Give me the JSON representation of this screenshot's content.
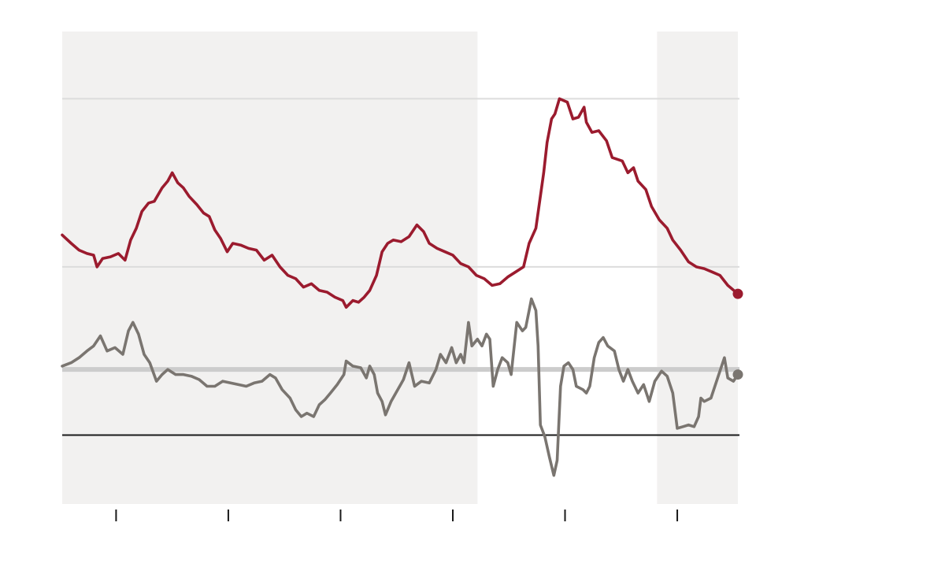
{
  "chart_data": {
    "type": "line",
    "title": "",
    "xlabel": "",
    "ylabel": "",
    "xlim": [
      -0.48,
      5.54
    ],
    "ylim": [
      -41,
      240
    ],
    "x_ticks": [
      0,
      1,
      2,
      3,
      4,
      5
    ],
    "y_gridlines": [
      100,
      200
    ],
    "zero_line": 0,
    "reference_line": 39,
    "grid": true,
    "shaded_regions": [
      [
        -0.48,
        3.22
      ],
      [
        4.82,
        5.54
      ]
    ],
    "colors": {
      "shade": "#f2f1f0",
      "grid": "#dcdcdc",
      "reference": "#cccccc",
      "zero": "#1a1a1a",
      "tick": "#1a1a1a"
    },
    "series": [
      {
        "color": "#9b1b2e",
        "end_marker": true,
        "points": [
          [
            -0.48,
            119
          ],
          [
            -0.4,
            114
          ],
          [
            -0.33,
            110
          ],
          [
            -0.26,
            108
          ],
          [
            -0.2,
            107
          ],
          [
            -0.17,
            100
          ],
          [
            -0.12,
            105
          ],
          [
            -0.05,
            106
          ],
          [
            0.02,
            108
          ],
          [
            0.08,
            104
          ],
          [
            0.13,
            116
          ],
          [
            0.18,
            123
          ],
          [
            0.23,
            133
          ],
          [
            0.29,
            138
          ],
          [
            0.34,
            139
          ],
          [
            0.41,
            147
          ],
          [
            0.46,
            151
          ],
          [
            0.5,
            156
          ],
          [
            0.55,
            150
          ],
          [
            0.6,
            147
          ],
          [
            0.65,
            142
          ],
          [
            0.72,
            137
          ],
          [
            0.78,
            132
          ],
          [
            0.83,
            130
          ],
          [
            0.88,
            122
          ],
          [
            0.93,
            117
          ],
          [
            0.99,
            109
          ],
          [
            1.04,
            114
          ],
          [
            1.11,
            113
          ],
          [
            1.18,
            111
          ],
          [
            1.25,
            110
          ],
          [
            1.32,
            104
          ],
          [
            1.39,
            107
          ],
          [
            1.46,
            100
          ],
          [
            1.53,
            95
          ],
          [
            1.6,
            93
          ],
          [
            1.67,
            88
          ],
          [
            1.74,
            90
          ],
          [
            1.81,
            86
          ],
          [
            1.88,
            85
          ],
          [
            1.95,
            82
          ],
          [
            2.02,
            80
          ],
          [
            2.05,
            76
          ],
          [
            2.11,
            80
          ],
          [
            2.16,
            79
          ],
          [
            2.21,
            82
          ],
          [
            2.26,
            86
          ],
          [
            2.32,
            95
          ],
          [
            2.37,
            109
          ],
          [
            2.42,
            114
          ],
          [
            2.47,
            116
          ],
          [
            2.54,
            115
          ],
          [
            2.61,
            118
          ],
          [
            2.68,
            125
          ],
          [
            2.74,
            121
          ],
          [
            2.79,
            114
          ],
          [
            2.86,
            111
          ],
          [
            2.93,
            109
          ],
          [
            3.0,
            107
          ],
          [
            3.07,
            102
          ],
          [
            3.14,
            100
          ],
          [
            3.21,
            95
          ],
          [
            3.28,
            93
          ],
          [
            3.35,
            89
          ],
          [
            3.42,
            90
          ],
          [
            3.49,
            94
          ],
          [
            3.56,
            97
          ],
          [
            3.63,
            100
          ],
          [
            3.68,
            114
          ],
          [
            3.74,
            123
          ],
          [
            3.77,
            137
          ],
          [
            3.81,
            156
          ],
          [
            3.84,
            174
          ],
          [
            3.88,
            188
          ],
          [
            3.91,
            191
          ],
          [
            3.95,
            200
          ],
          [
            4.02,
            198
          ],
          [
            4.07,
            188
          ],
          [
            4.12,
            189
          ],
          [
            4.17,
            195
          ],
          [
            4.19,
            186
          ],
          [
            4.24,
            180
          ],
          [
            4.3,
            181
          ],
          [
            4.37,
            175
          ],
          [
            4.42,
            165
          ],
          [
            4.51,
            163
          ],
          [
            4.56,
            156
          ],
          [
            4.61,
            159
          ],
          [
            4.65,
            151
          ],
          [
            4.72,
            146
          ],
          [
            4.77,
            136
          ],
          [
            4.84,
            128
          ],
          [
            4.91,
            123
          ],
          [
            4.96,
            116
          ],
          [
            5.03,
            110
          ],
          [
            5.1,
            103
          ],
          [
            5.17,
            100
          ],
          [
            5.24,
            99
          ],
          [
            5.31,
            97
          ],
          [
            5.38,
            95
          ],
          [
            5.45,
            89
          ],
          [
            5.54,
            84
          ]
        ]
      },
      {
        "color": "#7a7570",
        "end_marker": true,
        "points": [
          [
            -0.48,
            41
          ],
          [
            -0.4,
            43
          ],
          [
            -0.33,
            46
          ],
          [
            -0.26,
            50
          ],
          [
            -0.2,
            53
          ],
          [
            -0.14,
            59
          ],
          [
            -0.08,
            50
          ],
          [
            -0.01,
            52
          ],
          [
            0.06,
            48
          ],
          [
            0.11,
            62
          ],
          [
            0.15,
            67
          ],
          [
            0.2,
            60
          ],
          [
            0.25,
            48
          ],
          [
            0.3,
            43
          ],
          [
            0.36,
            32
          ],
          [
            0.41,
            36
          ],
          [
            0.46,
            39
          ],
          [
            0.53,
            36
          ],
          [
            0.6,
            36
          ],
          [
            0.67,
            35
          ],
          [
            0.74,
            33
          ],
          [
            0.81,
            29
          ],
          [
            0.88,
            29
          ],
          [
            0.95,
            32
          ],
          [
            1.02,
            31
          ],
          [
            1.09,
            30
          ],
          [
            1.16,
            29
          ],
          [
            1.23,
            31
          ],
          [
            1.3,
            32
          ],
          [
            1.37,
            36
          ],
          [
            1.42,
            34
          ],
          [
            1.48,
            27
          ],
          [
            1.55,
            22
          ],
          [
            1.6,
            15
          ],
          [
            1.65,
            11
          ],
          [
            1.7,
            13
          ],
          [
            1.76,
            11
          ],
          [
            1.81,
            18
          ],
          [
            1.86,
            21
          ],
          [
            1.91,
            25
          ],
          [
            1.97,
            30
          ],
          [
            2.03,
            36
          ],
          [
            2.05,
            44
          ],
          [
            2.11,
            41
          ],
          [
            2.18,
            40
          ],
          [
            2.23,
            34
          ],
          [
            2.26,
            41
          ],
          [
            2.3,
            36
          ],
          [
            2.33,
            25
          ],
          [
            2.37,
            20
          ],
          [
            2.4,
            12
          ],
          [
            2.45,
            20
          ],
          [
            2.51,
            27
          ],
          [
            2.56,
            33
          ],
          [
            2.61,
            43
          ],
          [
            2.66,
            29
          ],
          [
            2.72,
            32
          ],
          [
            2.79,
            31
          ],
          [
            2.85,
            39
          ],
          [
            2.89,
            48
          ],
          [
            2.94,
            43
          ],
          [
            2.99,
            52
          ],
          [
            3.03,
            43
          ],
          [
            3.07,
            48
          ],
          [
            3.1,
            43
          ],
          [
            3.14,
            67
          ],
          [
            3.17,
            53
          ],
          [
            3.22,
            57
          ],
          [
            3.26,
            53
          ],
          [
            3.3,
            60
          ],
          [
            3.33,
            57
          ],
          [
            3.36,
            29
          ],
          [
            3.4,
            39
          ],
          [
            3.44,
            46
          ],
          [
            3.49,
            43
          ],
          [
            3.52,
            36
          ],
          [
            3.57,
            67
          ],
          [
            3.62,
            62
          ],
          [
            3.65,
            64
          ],
          [
            3.68,
            74
          ],
          [
            3.7,
            81
          ],
          [
            3.74,
            74
          ],
          [
            3.76,
            53
          ],
          [
            3.78,
            6
          ],
          [
            3.82,
            -1
          ],
          [
            3.86,
            -13
          ],
          [
            3.9,
            -24
          ],
          [
            3.93,
            -15
          ],
          [
            3.96,
            29
          ],
          [
            3.99,
            41
          ],
          [
            4.03,
            43
          ],
          [
            4.07,
            39
          ],
          [
            4.1,
            29
          ],
          [
            4.16,
            27
          ],
          [
            4.19,
            25
          ],
          [
            4.22,
            29
          ],
          [
            4.26,
            46
          ],
          [
            4.3,
            55
          ],
          [
            4.34,
            58
          ],
          [
            4.38,
            53
          ],
          [
            4.44,
            50
          ],
          [
            4.48,
            39
          ],
          [
            4.52,
            32
          ],
          [
            4.56,
            39
          ],
          [
            4.6,
            32
          ],
          [
            4.65,
            25
          ],
          [
            4.7,
            30
          ],
          [
            4.75,
            20
          ],
          [
            4.8,
            32
          ],
          [
            4.86,
            38
          ],
          [
            4.91,
            35
          ],
          [
            4.96,
            25
          ],
          [
            5.0,
            4
          ],
          [
            5.05,
            5
          ],
          [
            5.1,
            6
          ],
          [
            5.15,
            5
          ],
          [
            5.19,
            11
          ],
          [
            5.21,
            22
          ],
          [
            5.24,
            20
          ],
          [
            5.3,
            22
          ],
          [
            5.36,
            34
          ],
          [
            5.42,
            46
          ],
          [
            5.45,
            34
          ],
          [
            5.5,
            32
          ],
          [
            5.54,
            36
          ]
        ]
      }
    ]
  }
}
